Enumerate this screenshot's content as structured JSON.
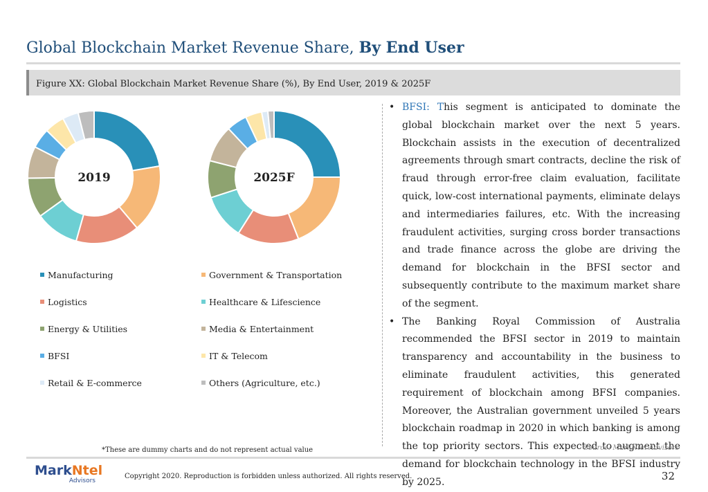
{
  "title": {
    "regular": "Global Blockchain Market Revenue Share, ",
    "bold": "By End User"
  },
  "figure_caption": "Figure XX: Global Blockchain Market Revenue Share (%), By End User, 2019 & 2025F",
  "chart_data": [
    {
      "type": "pie",
      "hole": "donut",
      "center_label": "2019",
      "categories": [
        "Manufacturing",
        "Government & Transportation",
        "Logistics",
        "Healthcare & Lifescience",
        "Energy & Utilities",
        "Media & Entertainment",
        "BFSI",
        "IT & Telecom",
        "Retail & E-commerce",
        "Others (Agriculture, etc.)"
      ],
      "values": [
        23,
        17,
        16,
        11,
        10,
        8,
        5,
        5,
        4,
        4
      ]
    },
    {
      "type": "pie",
      "hole": "donut",
      "center_label": "2025F",
      "categories": [
        "Manufacturing",
        "Government & Transportation",
        "Logistics",
        "Healthcare & Lifescience",
        "Energy & Utilities",
        "Media & Entertainment",
        "BFSI",
        "IT & Telecom",
        "Retail & E-commerce",
        "Others (Agriculture, etc.)"
      ],
      "values": [
        25,
        19,
        15,
        11,
        9,
        9,
        5,
        4,
        1.5,
        1.5
      ]
    }
  ],
  "colors": [
    "#2990b8",
    "#f6b877",
    "#e88e78",
    "#6dcfd3",
    "#8ea370",
    "#c3b49b",
    "#5aaee5",
    "#fde6a9",
    "#ddeaf6",
    "#bdbdbd"
  ],
  "legend": [
    "Manufacturing",
    "Government & Transportation",
    "Logistics",
    "Healthcare & Lifescience",
    "Energy & Utilities",
    "Media & Entertainment",
    "BFSI",
    "IT & Telecom",
    "Retail & E-commerce",
    "Others (Agriculture, etc.)"
  ],
  "bullets": {
    "b1_highlight_a": "BFSI: T",
    "b1_text": "his segment is anticipated to dominate the global blockchain market over the next 5 years. Blockchain assists in the execution of decentralized agreements through smart contracts, decline the risk of fraud through error-free claim evaluation, facilitate quick, low-cost international payments, eliminate delays and intermediaries failures, etc. With the increasing fraudulent activities, surging cross border transactions and trade finance across the globe are driving the demand for blockchain in the BFSI sector and subsequently contribute to the maximum market share of the segment.",
    "b2_text": "The Banking Royal Commission of Australia recommended the BFSI sector in 2019 to maintain transparency and accountability in the business to eliminate fraudulent activities, this generated requirement of blockchain among BFSI companies. Moreover, the Australian government unveiled 5 years blockchain roadmap in 2020 in which banking is among the top priority sectors. This expected to augment the demand for blockchain technology in the BFSI industry by 2025."
  },
  "note": "*These are dummy charts and do not represent actual value",
  "source": "Source: MarkNtel Advisors",
  "logo": {
    "mark": "Mark",
    "ntel": "Ntel",
    "sub": "Advisors"
  },
  "copyright": "Copyright 2020. Reproduction is forbidden unless authorized. All rights reserved.",
  "page_number": "32"
}
